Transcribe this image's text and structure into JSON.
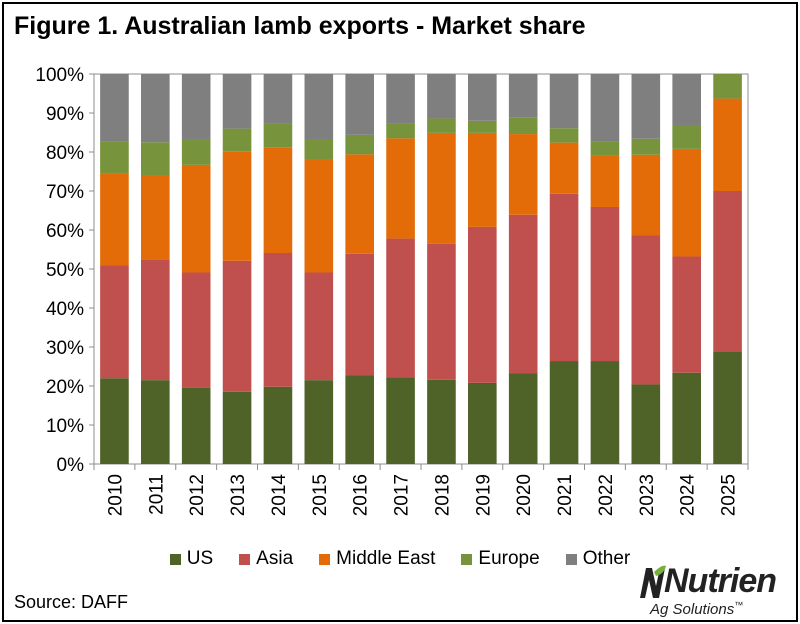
{
  "chart_data": {
    "type": "stacked-bar",
    "title": "Figure 1. Australian lamb exports - Market share",
    "categories": [
      "2010",
      "2011",
      "2012",
      "2013",
      "2014",
      "2015",
      "2016",
      "2017",
      "2018",
      "2019",
      "2020",
      "2021",
      "2022",
      "2023",
      "2024",
      "2025"
    ],
    "series": [
      {
        "name": "US",
        "color": "#4f6228",
        "values": [
          22.0,
          21.5,
          19.5,
          18.5,
          19.8,
          21.5,
          22.7,
          22.2,
          21.6,
          20.8,
          23.2,
          26.4,
          26.4,
          20.4,
          23.4,
          28.9
        ]
      },
      {
        "name": "Asia",
        "color": "#c0504d",
        "values": [
          29.0,
          31.0,
          29.6,
          33.6,
          34.3,
          27.6,
          31.2,
          35.6,
          34.9,
          40.0,
          40.7,
          42.9,
          39.5,
          38.3,
          29.8,
          41.1
        ]
      },
      {
        "name": "Middle East",
        "color": "#e36c09",
        "values": [
          23.6,
          21.6,
          27.6,
          28.1,
          27.1,
          29.1,
          25.5,
          25.7,
          28.4,
          24.1,
          20.7,
          13.1,
          13.1,
          20.6,
          27.6,
          23.7
        ]
      },
      {
        "name": "Europe",
        "color": "#77933c",
        "values": [
          8.0,
          8.4,
          6.5,
          5.8,
          6.0,
          5.0,
          5.0,
          3.7,
          3.7,
          3.1,
          4.2,
          3.7,
          3.6,
          4.1,
          6.0,
          6.3
        ]
      },
      {
        "name": "Other",
        "color": "#7f7f7f",
        "values": [
          17.4,
          17.5,
          16.8,
          14.0,
          12.8,
          16.8,
          15.6,
          12.8,
          11.4,
          12.0,
          11.2,
          13.9,
          17.4,
          16.6,
          13.2,
          0.0
        ]
      }
    ],
    "y_ticks": [
      "0%",
      "10%",
      "20%",
      "30%",
      "40%",
      "50%",
      "60%",
      "70%",
      "80%",
      "90%",
      "100%"
    ],
    "ylim": [
      0,
      100
    ],
    "xlabel": "",
    "ylabel": "",
    "legend_position": "bottom"
  },
  "source": "Source: DAFF",
  "logo": {
    "brand": "Nutrien",
    "tagline": "Ag Solutions",
    "tagline_mark": "™"
  }
}
